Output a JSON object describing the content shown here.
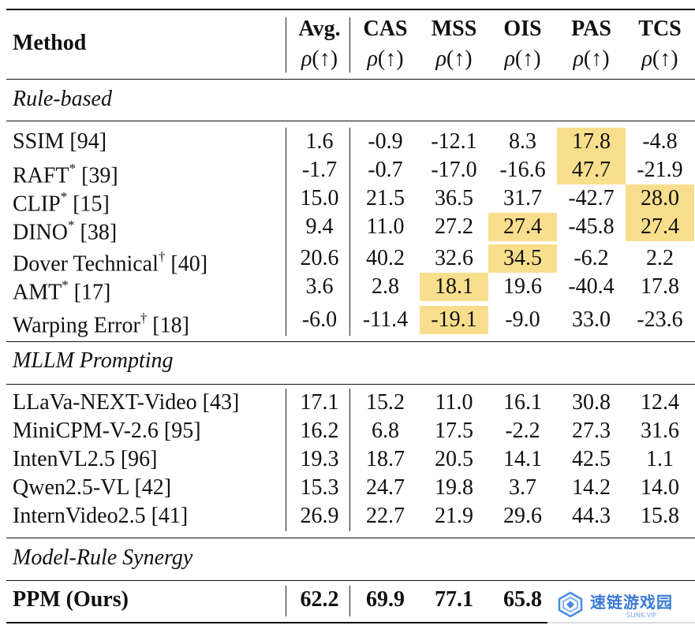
{
  "header": {
    "method": "Method",
    "columns": [
      "Avg.",
      "CAS",
      "MSS",
      "OIS",
      "PAS",
      "TCS"
    ],
    "metric_symbol": "ρ",
    "metric_arrow": "(↑)"
  },
  "sections": [
    {
      "title": "Rule-based",
      "rows": [
        {
          "name": "SSIM [94]",
          "mark": "",
          "values": [
            "1.6",
            "-0.9",
            "-12.1",
            "8.3",
            "17.8",
            "-4.8"
          ],
          "highlight": [
            false,
            false,
            false,
            false,
            true,
            false
          ]
        },
        {
          "name": "RAFT",
          "mark": "*",
          "ref": " [39]",
          "values": [
            "-1.7",
            "-0.7",
            "-17.0",
            "-16.6",
            "47.7",
            "-21.9"
          ],
          "highlight": [
            false,
            false,
            false,
            false,
            true,
            false
          ]
        },
        {
          "name": "CLIP",
          "mark": "*",
          "ref": " [15]",
          "values": [
            "15.0",
            "21.5",
            "36.5",
            "31.7",
            "-42.7",
            "28.0"
          ],
          "highlight": [
            false,
            false,
            false,
            false,
            false,
            true
          ]
        },
        {
          "name": "DINO",
          "mark": "*",
          "ref": " [38]",
          "values": [
            "9.4",
            "11.0",
            "27.2",
            "27.4",
            "-45.8",
            "27.4"
          ],
          "highlight": [
            false,
            false,
            false,
            true,
            false,
            true
          ]
        },
        {
          "name": "Dover Technical",
          "mark": "†",
          "ref": " [40]",
          "values": [
            "20.6",
            "40.2",
            "32.6",
            "34.5",
            "-6.2",
            "2.2"
          ],
          "highlight": [
            false,
            false,
            false,
            true,
            false,
            false
          ]
        },
        {
          "name": "AMT",
          "mark": "*",
          "ref": " [17]",
          "values": [
            "3.6",
            "2.8",
            "18.1",
            "19.6",
            "-40.4",
            "17.8"
          ],
          "highlight": [
            false,
            false,
            true,
            false,
            false,
            false
          ]
        },
        {
          "name": "Warping Error",
          "mark": "†",
          "ref": " [18]",
          "values": [
            "-6.0",
            "-11.4",
            "-19.1",
            "-9.0",
            "33.0",
            "-23.6"
          ],
          "highlight": [
            false,
            false,
            true,
            false,
            false,
            false
          ]
        }
      ]
    },
    {
      "title": "MLLM Prompting",
      "rows": [
        {
          "name": "LLaVa-NEXT-Video [43]",
          "mark": "",
          "values": [
            "17.1",
            "15.2",
            "11.0",
            "16.1",
            "30.8",
            "12.4"
          ],
          "highlight": [
            false,
            false,
            false,
            false,
            false,
            false
          ]
        },
        {
          "name": "MiniCPM-V-2.6 [95]",
          "mark": "",
          "values": [
            "16.2",
            "6.8",
            "17.5",
            "-2.2",
            "27.3",
            "31.6"
          ],
          "highlight": [
            false,
            false,
            false,
            false,
            false,
            false
          ]
        },
        {
          "name": "IntenVL2.5 [96]",
          "mark": "",
          "values": [
            "19.3",
            "18.7",
            "20.5",
            "14.1",
            "42.5",
            "1.1"
          ],
          "highlight": [
            false,
            false,
            false,
            false,
            false,
            false
          ]
        },
        {
          "name": "Qwen2.5-VL [42]",
          "mark": "",
          "values": [
            "15.3",
            "24.7",
            "19.8",
            "3.7",
            "14.2",
            "14.0"
          ],
          "highlight": [
            false,
            false,
            false,
            false,
            false,
            false
          ]
        },
        {
          "name": "InternVideo2.5 [41]",
          "mark": "",
          "values": [
            "26.9",
            "22.7",
            "21.9",
            "29.6",
            "44.3",
            "15.8"
          ],
          "highlight": [
            false,
            false,
            false,
            false,
            false,
            false
          ]
        }
      ]
    },
    {
      "title": "Model-Rule Synergy",
      "rows": [
        {
          "name": "PPM (Ours)",
          "mark": "",
          "bold": true,
          "values": [
            "62.2",
            "69.9",
            "77.1",
            "65.8",
            "",
            ""
          ],
          "highlight": [
            false,
            false,
            false,
            false,
            false,
            false
          ]
        }
      ]
    }
  ],
  "watermark": {
    "text": "速链游戏园",
    "sub": "SLINK.VIP"
  }
}
